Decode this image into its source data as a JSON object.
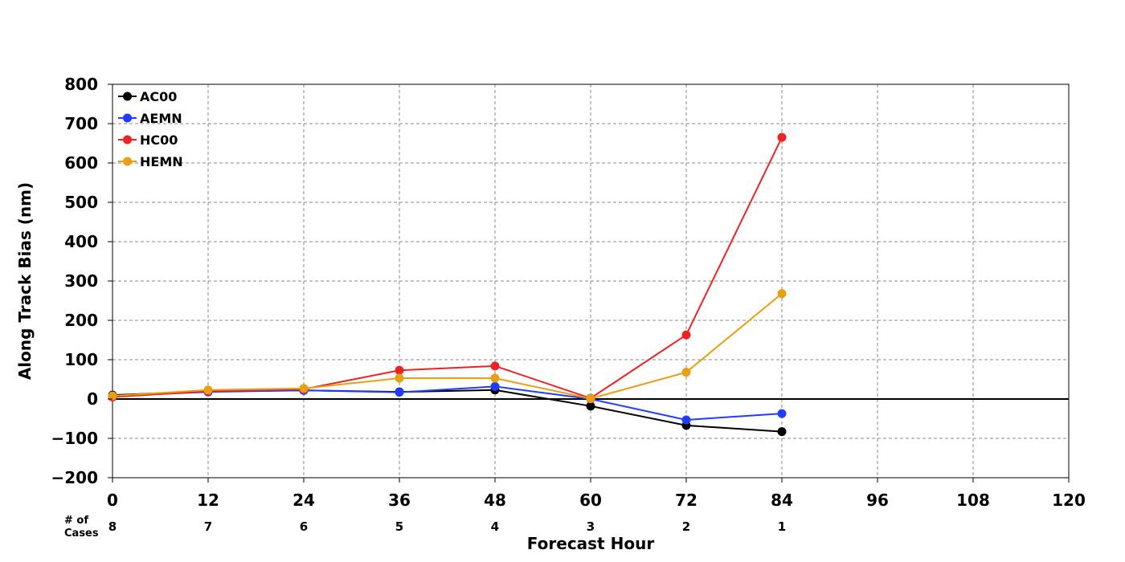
{
  "chart_data": {
    "type": "line",
    "xlabel": "Forecast Hour",
    "ylabel": "Along Track Bias (nm)",
    "xlim": [
      0,
      120
    ],
    "ylim": [
      -200,
      800
    ],
    "x_ticks": [
      0,
      12,
      24,
      36,
      48,
      60,
      72,
      84,
      96,
      108,
      120
    ],
    "y_ticks": [
      -200,
      -100,
      0,
      100,
      200,
      300,
      400,
      500,
      600,
      700,
      800
    ],
    "grid": true,
    "legend_position": "top-left",
    "cases_label": "# of Cases",
    "cases": [
      {
        "x": 0,
        "n": "8"
      },
      {
        "x": 12,
        "n": "7"
      },
      {
        "x": 24,
        "n": "6"
      },
      {
        "x": 36,
        "n": "5"
      },
      {
        "x": 48,
        "n": "4"
      },
      {
        "x": 60,
        "n": "3"
      },
      {
        "x": 72,
        "n": "2"
      },
      {
        "x": 84,
        "n": "1"
      }
    ],
    "x": [
      0,
      12,
      24,
      36,
      48,
      60,
      72,
      84
    ],
    "series": [
      {
        "name": "AC00",
        "color": "#000000",
        "values": [
          10,
          20,
          22,
          18,
          23,
          -18,
          -67,
          -83
        ]
      },
      {
        "name": "AEMN",
        "color": "#1f3cff",
        "values": [
          8,
          18,
          22,
          17,
          32,
          0,
          -53,
          -37
        ]
      },
      {
        "name": "HC00",
        "color": "#ee2222",
        "values": [
          5,
          20,
          25,
          73,
          84,
          2,
          163,
          665
        ]
      },
      {
        "name": "HEMN",
        "color": "#e8a010",
        "values": [
          8,
          23,
          27,
          53,
          53,
          1,
          68,
          268
        ]
      }
    ]
  }
}
